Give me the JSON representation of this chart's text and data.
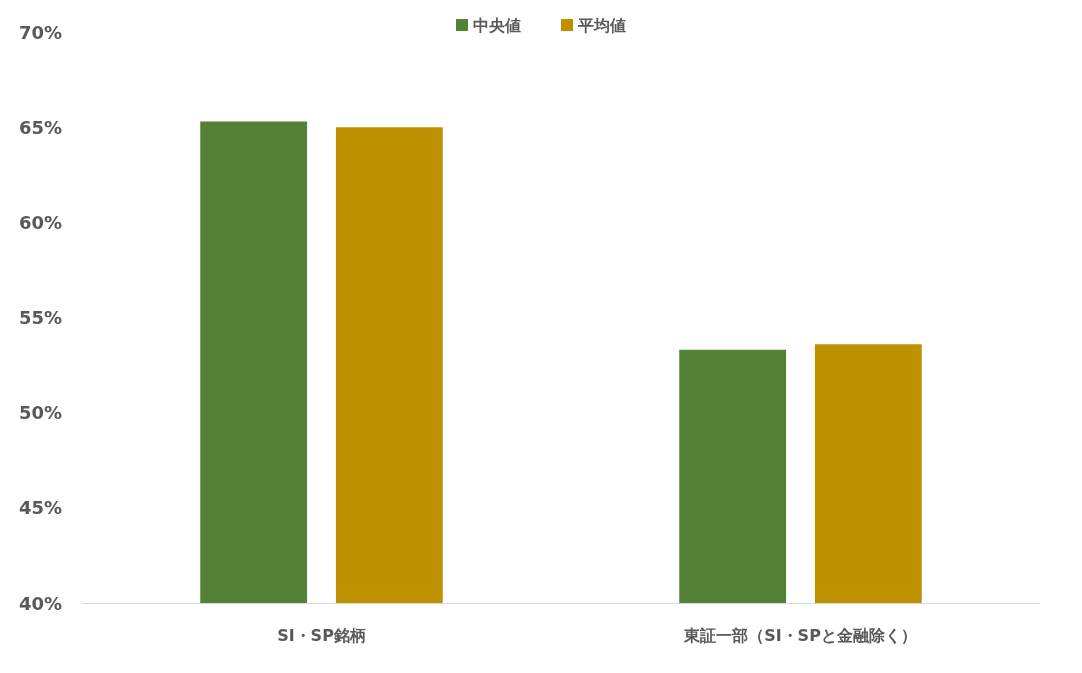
{
  "chart_data": {
    "type": "bar",
    "categories": [
      "SI・SP銘柄",
      "東証一部（SI・SPと金融除く）"
    ],
    "series": [
      {
        "name": "中央値",
        "color": "#538135",
        "values": [
          65.3,
          53.3
        ]
      },
      {
        "name": "平均値",
        "color": "#bf9000",
        "values": [
          65.0,
          53.6
        ]
      }
    ],
    "ylim": [
      40,
      70
    ],
    "yticks": [
      {
        "value": 40,
        "label": "40%"
      },
      {
        "value": 45,
        "label": "45%"
      },
      {
        "value": 50,
        "label": "50%"
      },
      {
        "value": 55,
        "label": "55%"
      },
      {
        "value": 60,
        "label": "60%"
      },
      {
        "value": 65,
        "label": "65%"
      },
      {
        "value": 70,
        "label": "70%"
      }
    ],
    "grid": false,
    "legend": "top"
  }
}
